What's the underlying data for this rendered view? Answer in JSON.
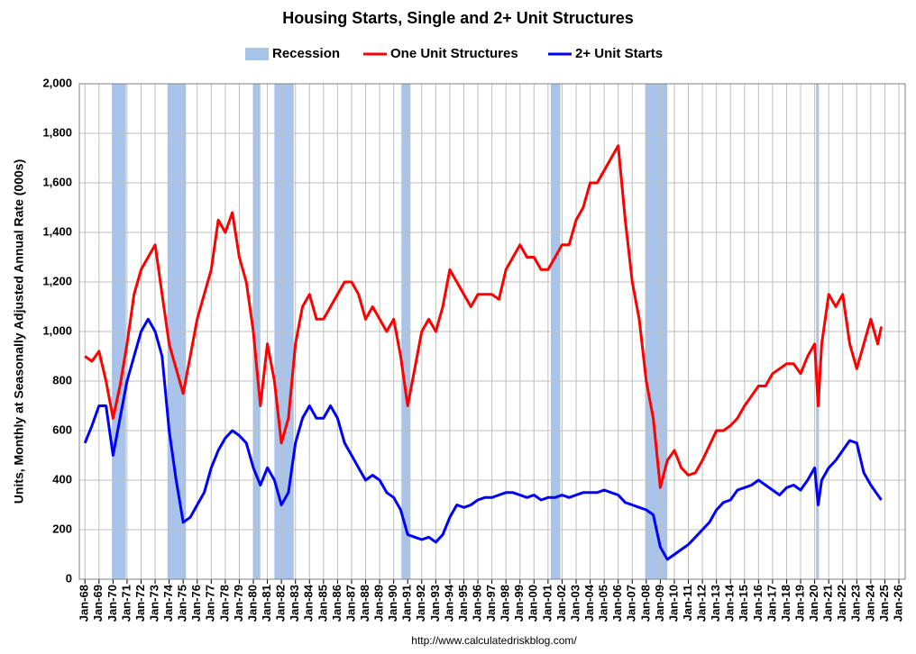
{
  "chart_data": {
    "type": "line",
    "title": "Housing Starts, Single and 2+ Unit Structures",
    "y_label": "Units, Monthly at Seasonally Adjusted Annual Rate (000s)",
    "source": "http://www.calculatedriskblog.com/",
    "recession": {
      "name": "Recession",
      "color": "#a9c4eb",
      "periods": [
        [
          1969.92,
          1970.92
        ],
        [
          1973.88,
          1975.2
        ],
        [
          1980.0,
          1980.5
        ],
        [
          1981.5,
          1982.88
        ],
        [
          1990.55,
          1991.2
        ],
        [
          2001.2,
          2001.88
        ],
        [
          2007.92,
          2009.5
        ],
        [
          2020.1,
          2020.3
        ]
      ]
    },
    "x": [
      1968,
      1968.5,
      1969,
      1969.5,
      1970,
      1970.5,
      1971,
      1971.5,
      1972,
      1972.5,
      1973,
      1973.5,
      1974,
      1974.5,
      1975,
      1975.5,
      1976,
      1976.5,
      1977,
      1977.5,
      1978,
      1978.5,
      1979,
      1979.5,
      1980,
      1980.5,
      1981,
      1981.5,
      1982,
      1982.5,
      1983,
      1983.5,
      1984,
      1984.5,
      1985,
      1985.5,
      1986,
      1986.5,
      1987,
      1987.5,
      1988,
      1988.5,
      1989,
      1989.5,
      1990,
      1990.5,
      1991,
      1991.5,
      1992,
      1992.5,
      1993,
      1993.5,
      1994,
      1994.5,
      1995,
      1995.5,
      1996,
      1996.5,
      1997,
      1997.5,
      1998,
      1998.5,
      1999,
      1999.5,
      2000,
      2000.5,
      2001,
      2001.5,
      2002,
      2002.5,
      2003,
      2003.5,
      2004,
      2004.5,
      2005,
      2005.5,
      2006,
      2006.5,
      2007,
      2007.5,
      2008,
      2008.5,
      2009,
      2009.5,
      2010,
      2010.5,
      2011,
      2011.5,
      2012,
      2012.5,
      2013,
      2013.5,
      2014,
      2014.5,
      2015,
      2015.5,
      2016,
      2016.5,
      2017,
      2017.5,
      2018,
      2018.5,
      2019,
      2019.5,
      2020,
      2020.25,
      2020.5,
      2021,
      2021.5,
      2022,
      2022.5,
      2023,
      2023.5,
      2024,
      2024.5,
      2024.75
    ],
    "series": [
      {
        "name": "One Unit Structures",
        "color": "#ff0000",
        "values": [
          900,
          880,
          920,
          800,
          650,
          780,
          950,
          1150,
          1250,
          1300,
          1350,
          1150,
          950,
          850,
          750,
          900,
          1050,
          1150,
          1250,
          1450,
          1400,
          1480,
          1300,
          1200,
          1000,
          700,
          950,
          800,
          550,
          650,
          950,
          1100,
          1150,
          1050,
          1050,
          1100,
          1150,
          1200,
          1200,
          1150,
          1050,
          1100,
          1050,
          1000,
          1050,
          900,
          700,
          850,
          1000,
          1050,
          1000,
          1100,
          1250,
          1200,
          1150,
          1100,
          1150,
          1150,
          1150,
          1130,
          1250,
          1300,
          1350,
          1300,
          1300,
          1250,
          1250,
          1300,
          1350,
          1350,
          1450,
          1500,
          1600,
          1600,
          1650,
          1700,
          1750,
          1450,
          1200,
          1050,
          800,
          650,
          370,
          480,
          520,
          450,
          420,
          430,
          480,
          540,
          600,
          600,
          620,
          650,
          700,
          740,
          780,
          780,
          830,
          850,
          870,
          870,
          830,
          900,
          950,
          700,
          950,
          1150,
          1100,
          1150,
          950,
          850,
          950,
          1050,
          950,
          1020
        ]
      },
      {
        "name": "2+ Unit Starts",
        "color": "#0000ff",
        "values": [
          550,
          620,
          700,
          700,
          500,
          650,
          800,
          900,
          1000,
          1050,
          1000,
          900,
          600,
          400,
          230,
          250,
          300,
          350,
          450,
          520,
          570,
          600,
          580,
          550,
          450,
          380,
          450,
          400,
          300,
          350,
          550,
          650,
          700,
          650,
          650,
          700,
          650,
          550,
          500,
          450,
          400,
          420,
          400,
          350,
          330,
          280,
          180,
          170,
          160,
          170,
          150,
          180,
          250,
          300,
          290,
          300,
          320,
          330,
          330,
          340,
          350,
          350,
          340,
          330,
          340,
          320,
          330,
          330,
          340,
          330,
          340,
          350,
          350,
          350,
          360,
          350,
          340,
          310,
          300,
          290,
          280,
          260,
          130,
          80,
          100,
          120,
          140,
          170,
          200,
          230,
          280,
          310,
          320,
          360,
          370,
          380,
          400,
          380,
          360,
          340,
          370,
          380,
          360,
          400,
          450,
          300,
          400,
          450,
          480,
          520,
          560,
          550,
          430,
          380,
          340,
          320
        ]
      }
    ],
    "xlim": [
      1967.6,
      2026.45
    ],
    "xticks": [
      {
        "value": 1968,
        "label": "Jan-68"
      },
      {
        "value": 1969,
        "label": "Jan-69"
      },
      {
        "value": 1970,
        "label": "Jan-70"
      },
      {
        "value": 1971,
        "label": "Jan-71"
      },
      {
        "value": 1972,
        "label": "Jan-72"
      },
      {
        "value": 1973,
        "label": "Jan-73"
      },
      {
        "value": 1974,
        "label": "Jan-74"
      },
      {
        "value": 1975,
        "label": "Jan-75"
      },
      {
        "value": 1976,
        "label": "Jan-76"
      },
      {
        "value": 1977,
        "label": "Jan-77"
      },
      {
        "value": 1978,
        "label": "Jan-78"
      },
      {
        "value": 1979,
        "label": "Jan-79"
      },
      {
        "value": 1980,
        "label": "Jan-80"
      },
      {
        "value": 1981,
        "label": "Jan-81"
      },
      {
        "value": 1982,
        "label": "Jan-82"
      },
      {
        "value": 1983,
        "label": "Jan-83"
      },
      {
        "value": 1984,
        "label": "Jan-84"
      },
      {
        "value": 1985,
        "label": "Jan-85"
      },
      {
        "value": 1986,
        "label": "Jan-86"
      },
      {
        "value": 1987,
        "label": "Jan-87"
      },
      {
        "value": 1988,
        "label": "Jan-88"
      },
      {
        "value": 1989,
        "label": "Jan-89"
      },
      {
        "value": 1990,
        "label": "Jan-90"
      },
      {
        "value": 1991,
        "label": "Jan-91"
      },
      {
        "value": 1992,
        "label": "Jan-92"
      },
      {
        "value": 1993,
        "label": "Jan-93"
      },
      {
        "value": 1994,
        "label": "Jan-94"
      },
      {
        "value": 1995,
        "label": "Jan-95"
      },
      {
        "value": 1996,
        "label": "Jan-96"
      },
      {
        "value": 1997,
        "label": "Jan-97"
      },
      {
        "value": 1998,
        "label": "Jan-98"
      },
      {
        "value": 1999,
        "label": "Jan-99"
      },
      {
        "value": 2000,
        "label": "Jan-00"
      },
      {
        "value": 2001,
        "label": "Jan-01"
      },
      {
        "value": 2002,
        "label": "Jan-02"
      },
      {
        "value": 2003,
        "label": "Jan-03"
      },
      {
        "value": 2004,
        "label": "Jan-04"
      },
      {
        "value": 2005,
        "label": "Jan-05"
      },
      {
        "value": 2006,
        "label": "Jan-06"
      },
      {
        "value": 2007,
        "label": "Jan-07"
      },
      {
        "value": 2008,
        "label": "Jan-08"
      },
      {
        "value": 2009,
        "label": "Jan-09"
      },
      {
        "value": 2010,
        "label": "Jan-10"
      },
      {
        "value": 2011,
        "label": "Jan-11"
      },
      {
        "value": 2012,
        "label": "Jan-12"
      },
      {
        "value": 2013,
        "label": "Jan-13"
      },
      {
        "value": 2014,
        "label": "Jan-14"
      },
      {
        "value": 2015,
        "label": "Jan-15"
      },
      {
        "value": 2016,
        "label": "Jan-16"
      },
      {
        "value": 2017,
        "label": "Jan-17"
      },
      {
        "value": 2018,
        "label": "Jan-18"
      },
      {
        "value": 2019,
        "label": "Jan-19"
      },
      {
        "value": 2020,
        "label": "Jan-20"
      },
      {
        "value": 2021,
        "label": "Jan-21"
      },
      {
        "value": 2022,
        "label": "Jan-22"
      },
      {
        "value": 2023,
        "label": "Jan-23"
      },
      {
        "value": 2024,
        "label": "Jan-24"
      },
      {
        "value": 2025,
        "label": "Jan-25"
      },
      {
        "value": 2026,
        "label": "Jan-26"
      }
    ],
    "ylim": [
      0,
      2000
    ],
    "yticks": [
      0,
      200,
      400,
      600,
      800,
      {
        "value": 1000,
        "label": "1,000"
      },
      {
        "value": 1200,
        "label": "1,200"
      },
      {
        "value": 1400,
        "label": "1,400"
      },
      {
        "value": 1600,
        "label": "1,600"
      },
      {
        "value": 1800,
        "label": "1,800"
      },
      {
        "value": 2000,
        "label": "2,000"
      }
    ],
    "grid": true,
    "legend": "top"
  }
}
